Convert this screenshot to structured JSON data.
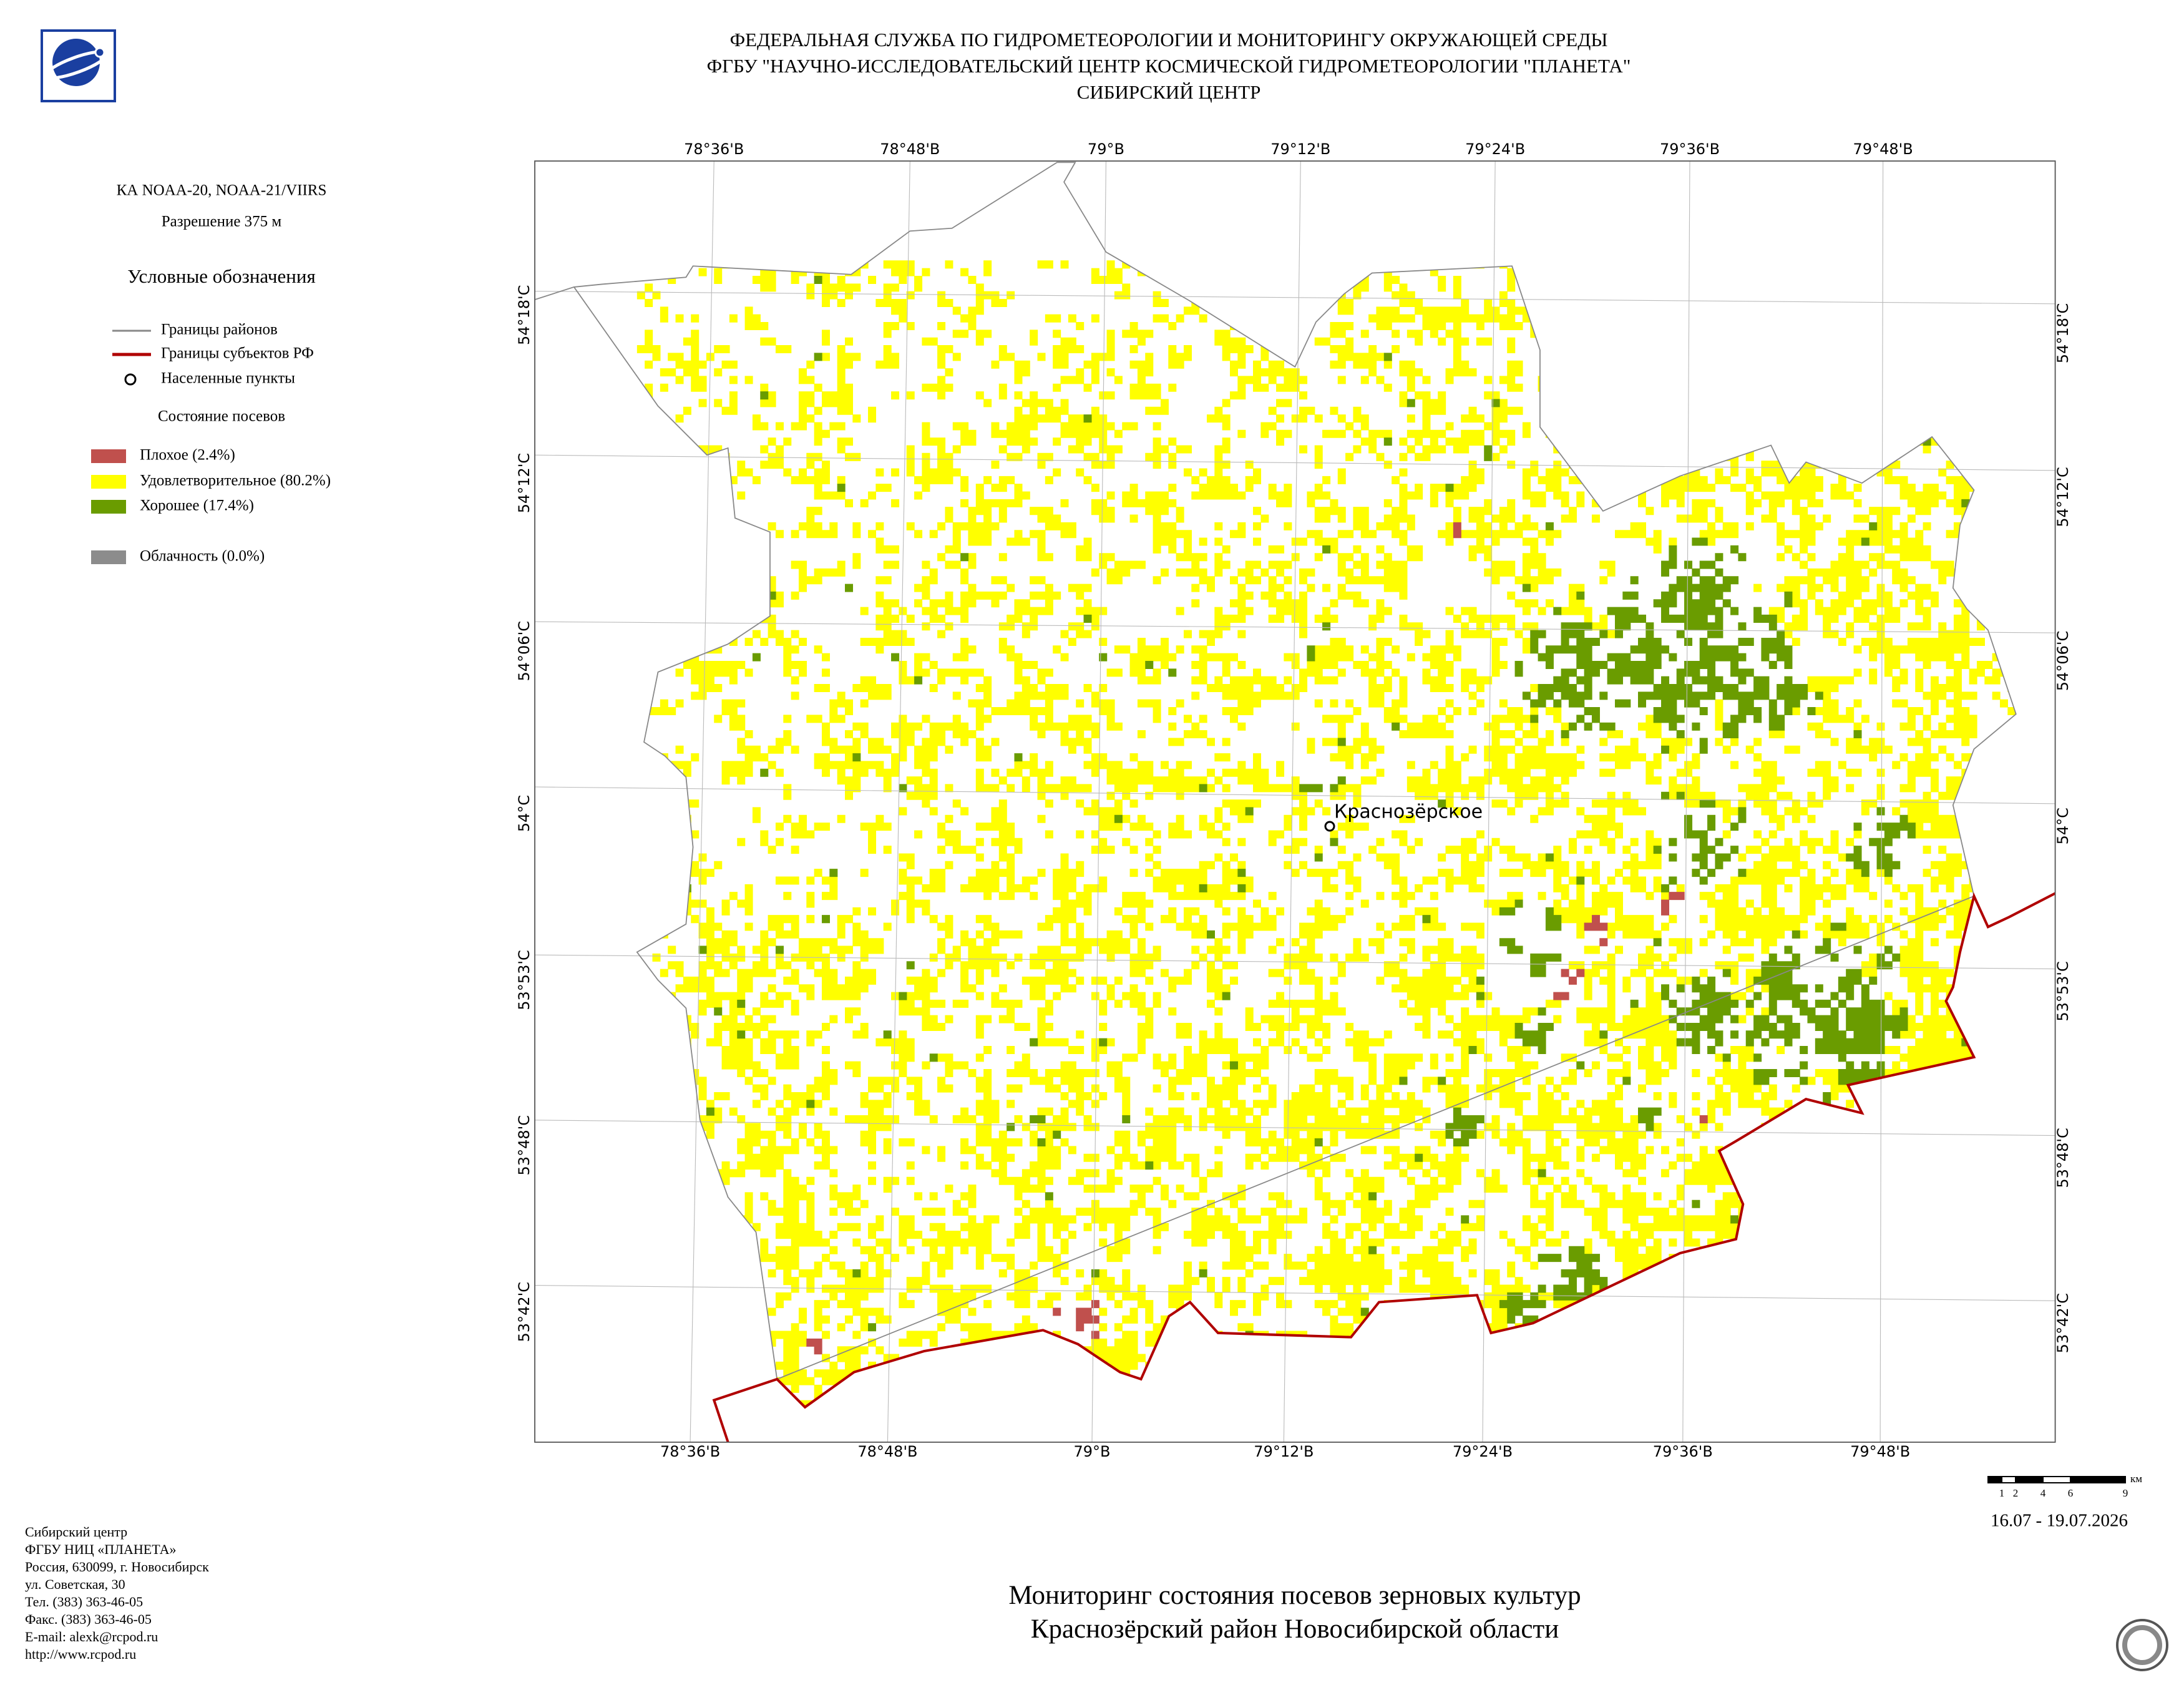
{
  "header": {
    "lines": [
      "ФЕДЕРАЛЬНАЯ СЛУЖБА ПО ГИДРОМЕТЕОРОЛОГИИ И МОНИТОРИНГУ ОКРУЖАЮЩЕЙ СРЕДЫ",
      "ФГБУ \"НАУЧНО-ИССЛЕДОВАТЕЛЬСКИЙ ЦЕНТР КОСМИЧЕСКОЙ ГИДРОМЕТЕОРОЛОГИИ \"ПЛАНЕТА\"",
      "СИБИРСКИЙ ЦЕНТР"
    ]
  },
  "left_panel": {
    "satellite": "КА NOAA-20, NOAA-21/VIIRS",
    "resolution": "Разрешение 375 м",
    "legend_title": "Условные обозначения",
    "boundaries": [
      "Границы районов",
      "Границы субъектов РФ",
      "Населенные пункты"
    ],
    "crop_title": "Состояние посевов",
    "crop_classes": [
      {
        "label": "Плохое (2.4%)",
        "color": "#c0504d"
      },
      {
        "label": "Удовлетворительное (80.2%)",
        "color": "#ffff00"
      },
      {
        "label": "Хорошее (17.4%)",
        "color": "#6a9c00"
      }
    ],
    "cloud": {
      "label": "Облачность (0.0%)",
      "color": "#8c8c8c"
    }
  },
  "map": {
    "top_labels": [
      "78°36'В",
      "78°48'В",
      "79°В",
      "79°12'В",
      "79°24'В",
      "79°36'В",
      "79°48'В"
    ],
    "bottom_labels": [
      "78°36'В",
      "78°48'В",
      "79°В",
      "79°12'В",
      "79°24'В",
      "79°36'В",
      "79°48'В"
    ],
    "left_labels": [
      "54°18'С",
      "54°12'С",
      "54°06'С",
      "54°С",
      "53°53'С",
      "53°48'С",
      "53°42'С"
    ],
    "right_labels": [
      "54°18'С",
      "54°12'С",
      "54°06'С",
      "54°С",
      "53°53'С",
      "53°48'С",
      "53°42'С"
    ],
    "settlement": "Краснозёрское",
    "scale_labels": [
      "1",
      "2",
      "4",
      "6",
      "9"
    ],
    "scale_unit": "км",
    "date": "16.07 - 19.07.2026"
  },
  "footer": {
    "contact": [
      "Сибирский центр",
      "ФГБУ НИЦ «ПЛАНЕТА»",
      "Россия, 630099, г. Новосибирск",
      "ул. Советская, 30",
      "Тел. (383) 363-46-05",
      "Факс. (383) 363-46-05",
      "E-mail: alexk@rcpod.ru",
      "http://www.rcpod.ru"
    ],
    "title": [
      "Мониторинг состояния посевов зерновых культур",
      "Краснозёрский район Новосибирской области"
    ]
  }
}
